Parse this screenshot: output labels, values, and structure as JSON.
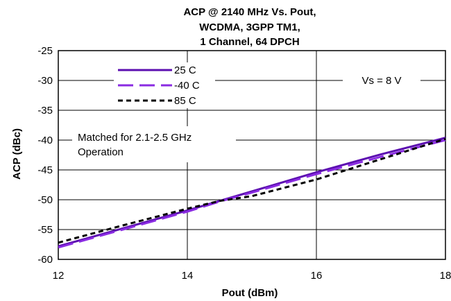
{
  "chart_data": {
    "type": "line",
    "title": [
      "ACP @ 2140 MHz Vs. Pout,",
      "WCDMA, 3GPP TM1,",
      "1 Channel, 64 DPCH"
    ],
    "xlabel": "Pout (dBm)",
    "ylabel": "ACP (dBc)",
    "xlim": [
      12,
      18
    ],
    "ylim": [
      -60,
      -25
    ],
    "x_ticks": [
      12,
      14,
      16,
      18
    ],
    "y_ticks": [
      -25,
      -30,
      -35,
      -40,
      -45,
      -50,
      -55,
      -60
    ],
    "grid": true,
    "legend_position": "top-left",
    "annotations": [
      "Vs = 8 V",
      "Matched for 2.1-2.5 GHz",
      "Operation"
    ],
    "series": [
      {
        "name": "25 C",
        "color": "#5c0fb0",
        "dash": "solid",
        "x": [
          12,
          13,
          14,
          14.5,
          15,
          16,
          17,
          18
        ],
        "y": [
          -57.8,
          -54.8,
          -51.8,
          -50.2,
          -48.6,
          -45.4,
          -42.4,
          -39.6
        ]
      },
      {
        "name": "-40 C",
        "color": "#8a2be2",
        "dash": "long-dash",
        "x": [
          12,
          13,
          14,
          14.5,
          15,
          16,
          17,
          18
        ],
        "y": [
          -58.0,
          -55.0,
          -52.0,
          -50.3,
          -48.8,
          -45.7,
          -42.8,
          -40.0
        ]
      },
      {
        "name": "85 C",
        "color": "#000000",
        "dash": "short-dash",
        "x": [
          12,
          13,
          14,
          14.5,
          15,
          16,
          17,
          18
        ],
        "y": [
          -57.2,
          -54.3,
          -51.5,
          -50.2,
          -49.4,
          -46.6,
          -43.2,
          -39.8
        ]
      }
    ]
  }
}
